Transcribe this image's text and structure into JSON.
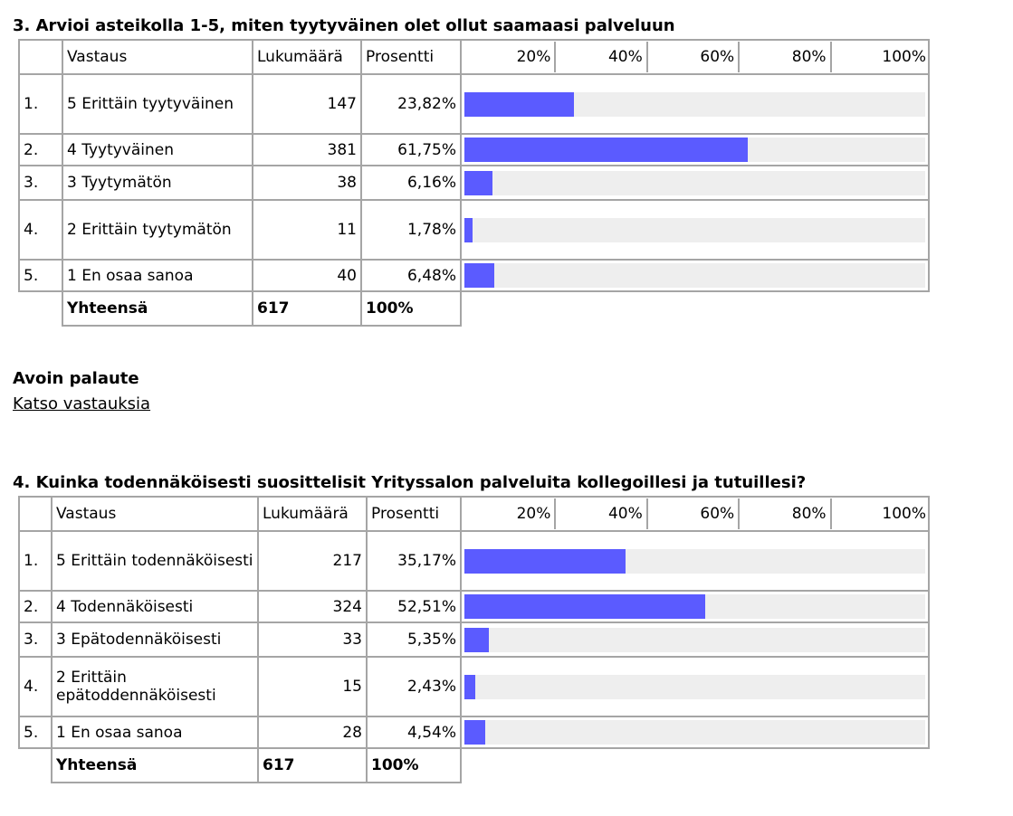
{
  "sections": [
    {
      "title": "3. Arvioi asteikolla 1-5, miten tyytyväinen olet ollut saamaasi palveluun",
      "headers": [
        "Vastaus",
        "Lukumäärä",
        "Prosentti"
      ],
      "scale": {
        "xlim": [
          0,
          100
        ],
        "xticks": [
          {
            "value": 20,
            "label": "20%"
          },
          {
            "value": 40,
            "label": "40%"
          },
          {
            "value": 60,
            "label": "60%"
          },
          {
            "value": 80,
            "label": "80%"
          },
          {
            "value": 100,
            "label": "100%"
          }
        ]
      },
      "rows": [
        {
          "number": "1.",
          "answer": "5 Erittäin tyytyväinen",
          "count": 147,
          "percent": {
            "value": 23.82,
            "label": "23,82%"
          }
        },
        {
          "number": "2.",
          "answer": "4 Tyytyväinen",
          "count": 381,
          "percent": {
            "value": 61.75,
            "label": "61,75%"
          }
        },
        {
          "number": "3.",
          "answer": "3 Tyytymätön",
          "count": 38,
          "percent": {
            "value": 6.16,
            "label": "6,16%"
          }
        },
        {
          "number": "4.",
          "answer": "2 Erittäin tyytymätön",
          "count": 11,
          "percent": {
            "value": 1.78,
            "label": "1,78%"
          }
        },
        {
          "number": "5.",
          "answer": "1 En osaa sanoa",
          "count": 40,
          "percent": {
            "value": 6.48,
            "label": "6,48%"
          }
        }
      ],
      "total": {
        "label": "Yhteensä",
        "count": 617,
        "percent": "100%"
      },
      "feedback": {
        "title": "Avoin palaute",
        "link": "Katso vastauksia"
      }
    },
    {
      "title": "4. Kuinka todennäköisesti suosittelisit Yrityssalon palveluita kollegoillesi ja tutuillesi?",
      "headers": [
        "Vastaus",
        "Lukumäärä",
        "Prosentti"
      ],
      "scale": {
        "xlim": [
          0,
          100
        ],
        "xticks": [
          {
            "value": 20,
            "label": "20%"
          },
          {
            "value": 40,
            "label": "40%"
          },
          {
            "value": 60,
            "label": "60%"
          },
          {
            "value": 80,
            "label": "80%"
          },
          {
            "value": 100,
            "label": "100%"
          }
        ]
      },
      "rows": [
        {
          "number": "1.",
          "answer": "5 Erittäin todennäköisesti",
          "count": 217,
          "percent": {
            "value": 35.17,
            "label": "35,17%"
          }
        },
        {
          "number": "2.",
          "answer": "4 Todennäköisesti",
          "count": 324,
          "percent": {
            "value": 52.51,
            "label": "52,51%"
          }
        },
        {
          "number": "3.",
          "answer": "3 Epätodennäköisesti",
          "count": 33,
          "percent": {
            "value": 5.35,
            "label": "5,35%"
          }
        },
        {
          "number": "4.",
          "answer": "2 Erittäin epätoddennäköisesti",
          "count": 15,
          "percent": {
            "value": 2.43,
            "label": "2,43%"
          }
        },
        {
          "number": "5.",
          "answer": "1 En osaa sanoa",
          "count": 28,
          "percent": {
            "value": 4.54,
            "label": "4,54%"
          }
        }
      ],
      "total": {
        "label": "Yhteensä",
        "count": 617,
        "percent": "100%"
      }
    }
  ]
}
